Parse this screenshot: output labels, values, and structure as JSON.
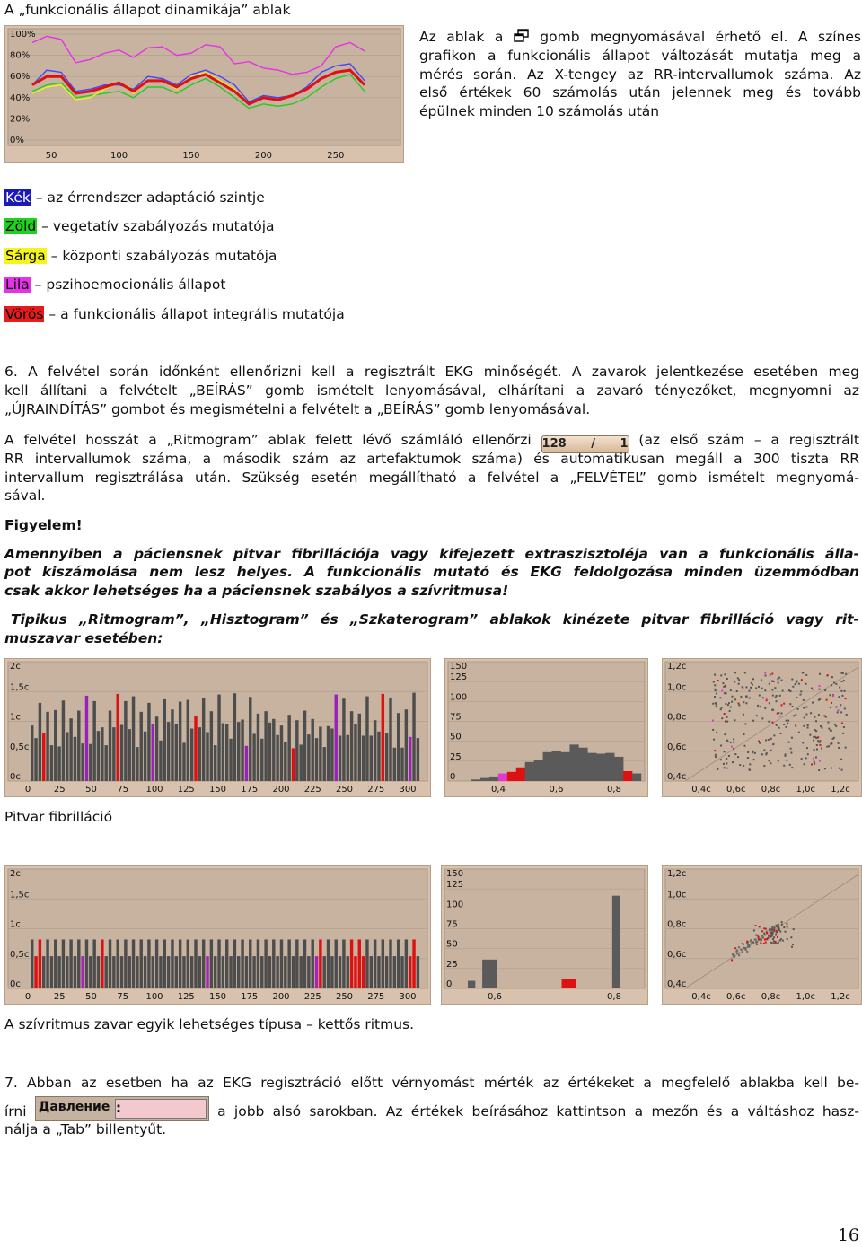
{
  "heading": "A „funkcionális állapot dinamikája” ablak",
  "intro": {
    "l1a": "Az ablak a",
    "l1b": "gomb megnyomásával érhető el. A színes",
    "l2": "grafikon a funkcionális állapot változását mutatja meg a",
    "l3": "mérés során. Az X-tengey az RR-intervallumok száma. Az",
    "l4": "első értékek 60 számolás után jelennek meg és tovább",
    "l5": "épülnek minden 10 számolás után"
  },
  "legend": [
    {
      "color_name": "Kék",
      "text": " – az érrendszer adaptáció szintje",
      "bg": "#1a1ab8",
      "fg": "#ffffff"
    },
    {
      "color_name": "Zöld",
      "text": " – vegetatív szabályozás mutatója",
      "bg": "#1fd21f",
      "fg": "#000000"
    },
    {
      "color_name": "Sárga",
      "text": " – központi szabályozás mutatója",
      "bg": "#f5f51c",
      "fg": "#000000"
    },
    {
      "color_name": "Lila",
      "text": " – pszihoemocionális állapot",
      "bg": "#e632e6",
      "fg": "#000000"
    },
    {
      "color_name": "Vörös",
      "text": " – a funkcionális állapot integrális mutatója",
      "bg": "#e81a1a",
      "fg": "#000000"
    }
  ],
  "para6": {
    "l1": "6. A felvétel során időnként ellenőrizni kell a regisztrált EKG minőségét. A zavarok jelentkezése esetében meg",
    "l2": "kell állítani a felvételt „BEÍRÁS” gomb ismételt lenyomásával, elhárítani a zavaró tényezőket, megnyomni az",
    "l3": "„ÚJRAINDÍTÁS” gombot és megismételni a felvételt a „BEÍRÁS” gomb lenyomásával.",
    "l4a": "A felvétel hosszát a „Ritmogram” ablak felett lévő számláló ellenőrzi",
    "counter": "128 / 1",
    "l4b": "(az első szám – a regisztrált",
    "l5": "RR intervallumok száma, a második szám az artefaktumok száma)  és automatikusan megáll a 300 tiszta RR",
    "l6": "intervallum regisztrálása után. Szükség esetén megállítható a felvétel a „FELVÉTEL” gomb ismételt megnyomá-",
    "l7": "sával."
  },
  "warning": {
    "title": "Figyelem!",
    "l1": "Amennyiben a páciensnek pitvar fibrillációja vagy kifejezett extraszisztoléja van a funkcionális álla-",
    "l2": "pot kiszámolása nem lesz helyes. A funkcionális mutató és EKG feldolgozása minden üzemmódban",
    "l3": "csak akkor lehetséges ha a páciensnek szabályos a szívritmusa!",
    "l4": "Tipikus „Ritmogram”, „Hisztogram” és „Szkaterogram” ablakok kinézete pitvar fibrilláció vagy rit-",
    "l5": "muszavar esetében:"
  },
  "caption1": "Pitvar fibrilláció",
  "caption2": "A szívritmus zavar egyik lehetséges típusa – kettős ritmus.",
  "para7": {
    "l1": "7. Abban az esetben ha az EKG regisztráció előtt vérnyomást mérték az értékeket a megfelelő ablakba kell be-",
    "l2a": "írni",
    "l2b": "a jobb alsó sarokban. Az értékek beírásához kattintson a mezőn és a váltáshoz hasz-",
    "l3": "nálja a „Tab” billentyűt.",
    "pressure_label": "Давление",
    "pressure_sep": ":"
  },
  "page_number": "16",
  "chart_data": [
    {
      "type": "line",
      "yticks": [
        "100%",
        "80%",
        "60%",
        "40%",
        "20%",
        "0%"
      ],
      "xticks": [
        "50",
        "100",
        "150",
        "200",
        "250"
      ],
      "ylim": [
        0,
        100
      ],
      "x": [
        40,
        50,
        60,
        70,
        80,
        90,
        100,
        110,
        120,
        130,
        140,
        150,
        160,
        170,
        180,
        190,
        200,
        210,
        220,
        230,
        240,
        250,
        260,
        270
      ],
      "series": [
        {
          "color": "#e632e6",
          "values": [
            92,
            98,
            95,
            73,
            76,
            82,
            85,
            78,
            87,
            88,
            80,
            82,
            90,
            88,
            72,
            74,
            68,
            66,
            62,
            64,
            70,
            88,
            92,
            84
          ]
        },
        {
          "color": "#4444ff",
          "values": [
            52,
            66,
            64,
            46,
            48,
            52,
            52,
            48,
            60,
            58,
            52,
            62,
            66,
            60,
            52,
            36,
            42,
            40,
            42,
            50,
            64,
            70,
            72,
            56
          ]
        },
        {
          "color": "#22cc22",
          "values": [
            46,
            52,
            54,
            40,
            42,
            44,
            46,
            40,
            50,
            50,
            44,
            52,
            58,
            50,
            40,
            30,
            34,
            32,
            34,
            40,
            50,
            58,
            62,
            46
          ]
        },
        {
          "color": "#eeee22",
          "values": [
            44,
            50,
            52,
            38,
            40,
            48,
            54,
            44,
            56,
            56,
            48,
            60,
            64,
            56,
            48,
            34,
            40,
            38,
            42,
            48,
            58,
            64,
            66,
            52
          ]
        },
        {
          "color": "#dd1111",
          "values": [
            52,
            60,
            60,
            44,
            46,
            50,
            54,
            46,
            56,
            56,
            50,
            58,
            62,
            54,
            46,
            34,
            40,
            38,
            42,
            48,
            58,
            64,
            66,
            52
          ]
        }
      ]
    },
    {
      "type": "bar",
      "yticks": [
        "2c",
        "1,5c",
        "1c",
        "0,5c",
        "0c"
      ],
      "xticks": [
        "0",
        "25",
        "50",
        "75",
        "100",
        "125",
        "150",
        "175",
        "200",
        "225",
        "250",
        "275",
        "300"
      ],
      "ylim": [
        0,
        2
      ],
      "values": [
        0.93,
        0.72,
        1.31,
        0.8,
        1.16,
        0.6,
        1.19,
        0.58,
        1.35,
        0.82,
        1.05,
        0.74,
        1.18,
        0.63,
        1.43,
        0.62,
        1.34,
        0.84,
        0.9,
        0.6,
        1.18,
        0.9,
        1.46,
        0.94,
        1.34,
        0.87,
        1.42,
        0.57,
        1.16,
        0.83,
        1.31,
        0.96,
        1.08,
        0.68,
        1.37,
        0.99,
        1.2,
        0.96,
        1.33,
        0.64,
        1.36,
        0.88,
        1.09,
        0.9,
        1.39,
        0.82,
        1.17,
        0.6,
        1.45,
        0.97,
        0.95,
        0.71,
        1.47,
        0.99,
        1.03,
        0.59,
        1.41,
        0.79,
        1.13,
        0.71,
        1.17,
        0.98,
        1.04,
        0.77,
        0.93,
        0.65,
        1.11,
        0.55,
        1.02,
        0.61,
        1.18,
        0.78,
        1.04,
        0.72,
        0.91,
        0.57,
        0.92,
        0.88,
        1.45,
        0.76,
        1.38,
        0.77,
        1.17,
        0.96,
        1.13,
        0.76,
        1.42,
        0.76,
        1.02,
        0.83,
        1.46,
        0.81,
        1.4,
        0.56,
        1.14,
        0.56,
        1.2,
        0.74,
        1.48,
        0.72
      ],
      "highlight_colors": {
        "3": "#dd1111",
        "14": "#9922bb",
        "22": "#dd1111",
        "31": "#9922bb",
        "42": "#dd1111",
        "55": "#9922bb",
        "67": "#dd1111",
        "78": "#9922bb",
        "90": "#dd1111",
        "97": "#9922bb"
      }
    },
    {
      "type": "bar",
      "yticks": [
        "150",
        "125",
        "100",
        "75",
        "50",
        "25",
        "0"
      ],
      "xticks": [
        "0,4",
        "0,6",
        "0,8"
      ],
      "ylim": [
        0,
        150
      ],
      "values": [
        2,
        4,
        6,
        10,
        12,
        18,
        25,
        28,
        38,
        40,
        38,
        48,
        44,
        37,
        36,
        37,
        32,
        13,
        10
      ],
      "red_bins": [
        4,
        5,
        17
      ],
      "pink_bins": [
        3
      ]
    },
    {
      "type": "scatter",
      "yticks": [
        "1,2c",
        "1,0c",
        "0,8c",
        "0,6c",
        "0,4c"
      ],
      "xticks": [
        "0,4c",
        "0,6c",
        "0,8c",
        "1,0c",
        "1,2c"
      ],
      "xlim": [
        0.3,
        1.3
      ],
      "ylim": [
        0.3,
        1.3
      ]
    },
    {
      "type": "bar",
      "yticks": [
        "2c",
        "1,5c",
        "1c",
        "0,5c",
        "0c"
      ],
      "xticks": [
        "0",
        "25",
        "50",
        "75",
        "100",
        "125",
        "150",
        "175",
        "200",
        "225",
        "250",
        "275",
        "300"
      ],
      "ylim": [
        0,
        2
      ],
      "values": [
        0.82,
        0.54,
        0.82,
        0.54,
        0.82,
        0.54,
        0.82,
        0.54,
        0.82,
        0.54,
        0.82,
        0.54,
        0.82,
        0.54,
        0.82,
        0.54,
        0.82,
        0.54,
        0.82,
        0.54,
        0.82,
        0.54,
        0.82,
        0.54,
        0.82,
        0.54,
        0.82,
        0.54,
        0.82,
        0.54,
        0.82,
        0.54,
        0.82,
        0.54,
        0.82,
        0.54,
        0.82,
        0.54,
        0.82,
        0.54,
        0.82,
        0.54,
        0.82,
        0.54,
        0.82,
        0.54,
        0.82,
        0.54,
        0.82,
        0.54,
        0.82,
        0.54,
        0.82,
        0.54,
        0.82,
        0.54,
        0.82,
        0.54,
        0.82,
        0.54,
        0.82,
        0.54,
        0.82,
        0.54,
        0.82,
        0.54,
        0.82,
        0.54,
        0.82,
        0.54,
        0.82,
        0.54,
        0.82,
        0.54,
        0.82,
        0.54,
        0.82,
        0.54,
        0.82,
        0.54,
        0.82,
        0.54,
        0.82,
        0.54,
        0.82,
        0.54,
        0.82,
        0.54,
        0.82,
        0.54,
        0.82,
        0.54,
        0.82,
        0.54,
        0.82,
        0.54,
        0.82,
        0.54,
        0.82,
        0.54
      ],
      "highlight_colors": {
        "1": "#dd1111",
        "2": "#dd1111",
        "13": "#aa22bb",
        "18": "#dd1111",
        "45": "#aa22bb",
        "73": "#aa22bb",
        "74": "#dd1111",
        "82": "#dd1111",
        "83": "#dd1111",
        "84": "#dd1111",
        "85": "#dd1111",
        "97": "#dd1111",
        "98": "#dd1111"
      }
    },
    {
      "type": "bar",
      "yticks": [
        "150",
        "125",
        "100",
        "75",
        "50",
        "25",
        "0"
      ],
      "xticks": [
        "0,6",
        "0,8"
      ],
      "ylim": [
        0,
        150
      ],
      "values": [
        10,
        0,
        38,
        38,
        0,
        0,
        0,
        0,
        0,
        0,
        0,
        0,
        0,
        12,
        12,
        0,
        0,
        0,
        0,
        0,
        122,
        0,
        0,
        0
      ],
      "red_bins": [
        13,
        14
      ]
    },
    {
      "type": "scatter",
      "yticks": [
        "1,2c",
        "1,0c",
        "0,8c",
        "0,6c",
        "0,4c"
      ],
      "xticks": [
        "0,4c",
        "0,6c",
        "0,8c",
        "1,0c",
        "1,2c"
      ],
      "xlim": [
        0.3,
        1.3
      ],
      "ylim": [
        0.3,
        1.3
      ]
    }
  ]
}
